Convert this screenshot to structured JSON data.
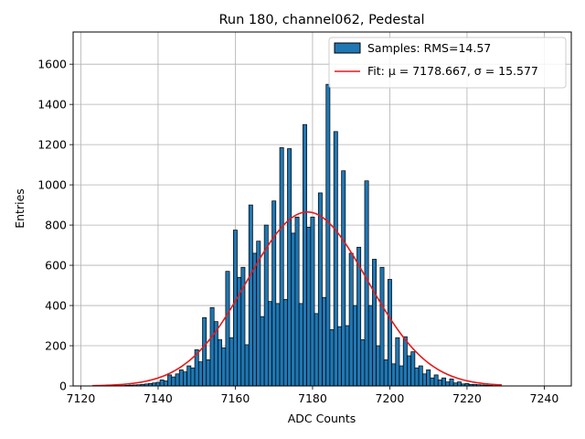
{
  "chart_data": {
    "type": "bar",
    "title": "Run 180, channel062, Pedestal",
    "xlabel": "ADC Counts",
    "ylabel": "Entries",
    "xlim": [
      7118,
      7247
    ],
    "ylim": [
      0,
      1760
    ],
    "xticks": [
      7120,
      7140,
      7160,
      7180,
      7200,
      7220,
      7240
    ],
    "yticks": [
      0,
      200,
      400,
      600,
      800,
      1000,
      1200,
      1400,
      1600
    ],
    "grid": true,
    "legend_position": "top-right",
    "series": [
      {
        "name": "Samples: RMS=14.57",
        "kind": "histogram",
        "color": "#1f77b4",
        "edgecolor": "#000000",
        "bin_width": 1,
        "x": [
          7130,
          7131,
          7132,
          7133,
          7134,
          7135,
          7136,
          7137,
          7138,
          7139,
          7140,
          7141,
          7142,
          7143,
          7144,
          7145,
          7146,
          7147,
          7148,
          7149,
          7150,
          7151,
          7152,
          7153,
          7154,
          7155,
          7156,
          7157,
          7158,
          7159,
          7160,
          7161,
          7162,
          7163,
          7164,
          7165,
          7166,
          7167,
          7168,
          7169,
          7170,
          7171,
          7172,
          7173,
          7174,
          7175,
          7176,
          7177,
          7178,
          7179,
          7180,
          7181,
          7182,
          7183,
          7184,
          7185,
          7186,
          7187,
          7188,
          7189,
          7190,
          7191,
          7192,
          7193,
          7194,
          7195,
          7196,
          7197,
          7198,
          7199,
          7200,
          7201,
          7202,
          7203,
          7204,
          7205,
          7206,
          7207,
          7208,
          7209,
          7210,
          7211,
          7212,
          7213,
          7214,
          7215,
          7216,
          7217,
          7218,
          7219,
          7220,
          7221,
          7222,
          7223,
          7224,
          7225,
          7226,
          7227,
          7228
        ],
        "values": [
          2,
          2,
          3,
          4,
          5,
          6,
          8,
          10,
          12,
          15,
          18,
          30,
          25,
          55,
          45,
          60,
          80,
          70,
          100,
          90,
          180,
          120,
          340,
          130,
          390,
          320,
          230,
          190,
          570,
          240,
          775,
          540,
          590,
          205,
          900,
          660,
          720,
          345,
          800,
          420,
          920,
          410,
          1185,
          430,
          1180,
          760,
          840,
          410,
          1300,
          790,
          840,
          360,
          960,
          440,
          1500,
          280,
          1265,
          295,
          1070,
          300,
          660,
          400,
          690,
          230,
          1020,
          400,
          630,
          200,
          590,
          130,
          530,
          110,
          240,
          100,
          245,
          150,
          170,
          90,
          100,
          60,
          80,
          40,
          55,
          30,
          40,
          20,
          35,
          15,
          20,
          10,
          12,
          8,
          8,
          6,
          5,
          4,
          3,
          2,
          2
        ]
      },
      {
        "name": "Fit: μ = 7178.667, σ = 15.577",
        "kind": "gaussian_fit",
        "color": "#e41a1c",
        "mu": 7178.667,
        "sigma": 15.577,
        "amplitude": 865,
        "x_range": [
          7123,
          7229
        ]
      }
    ]
  }
}
